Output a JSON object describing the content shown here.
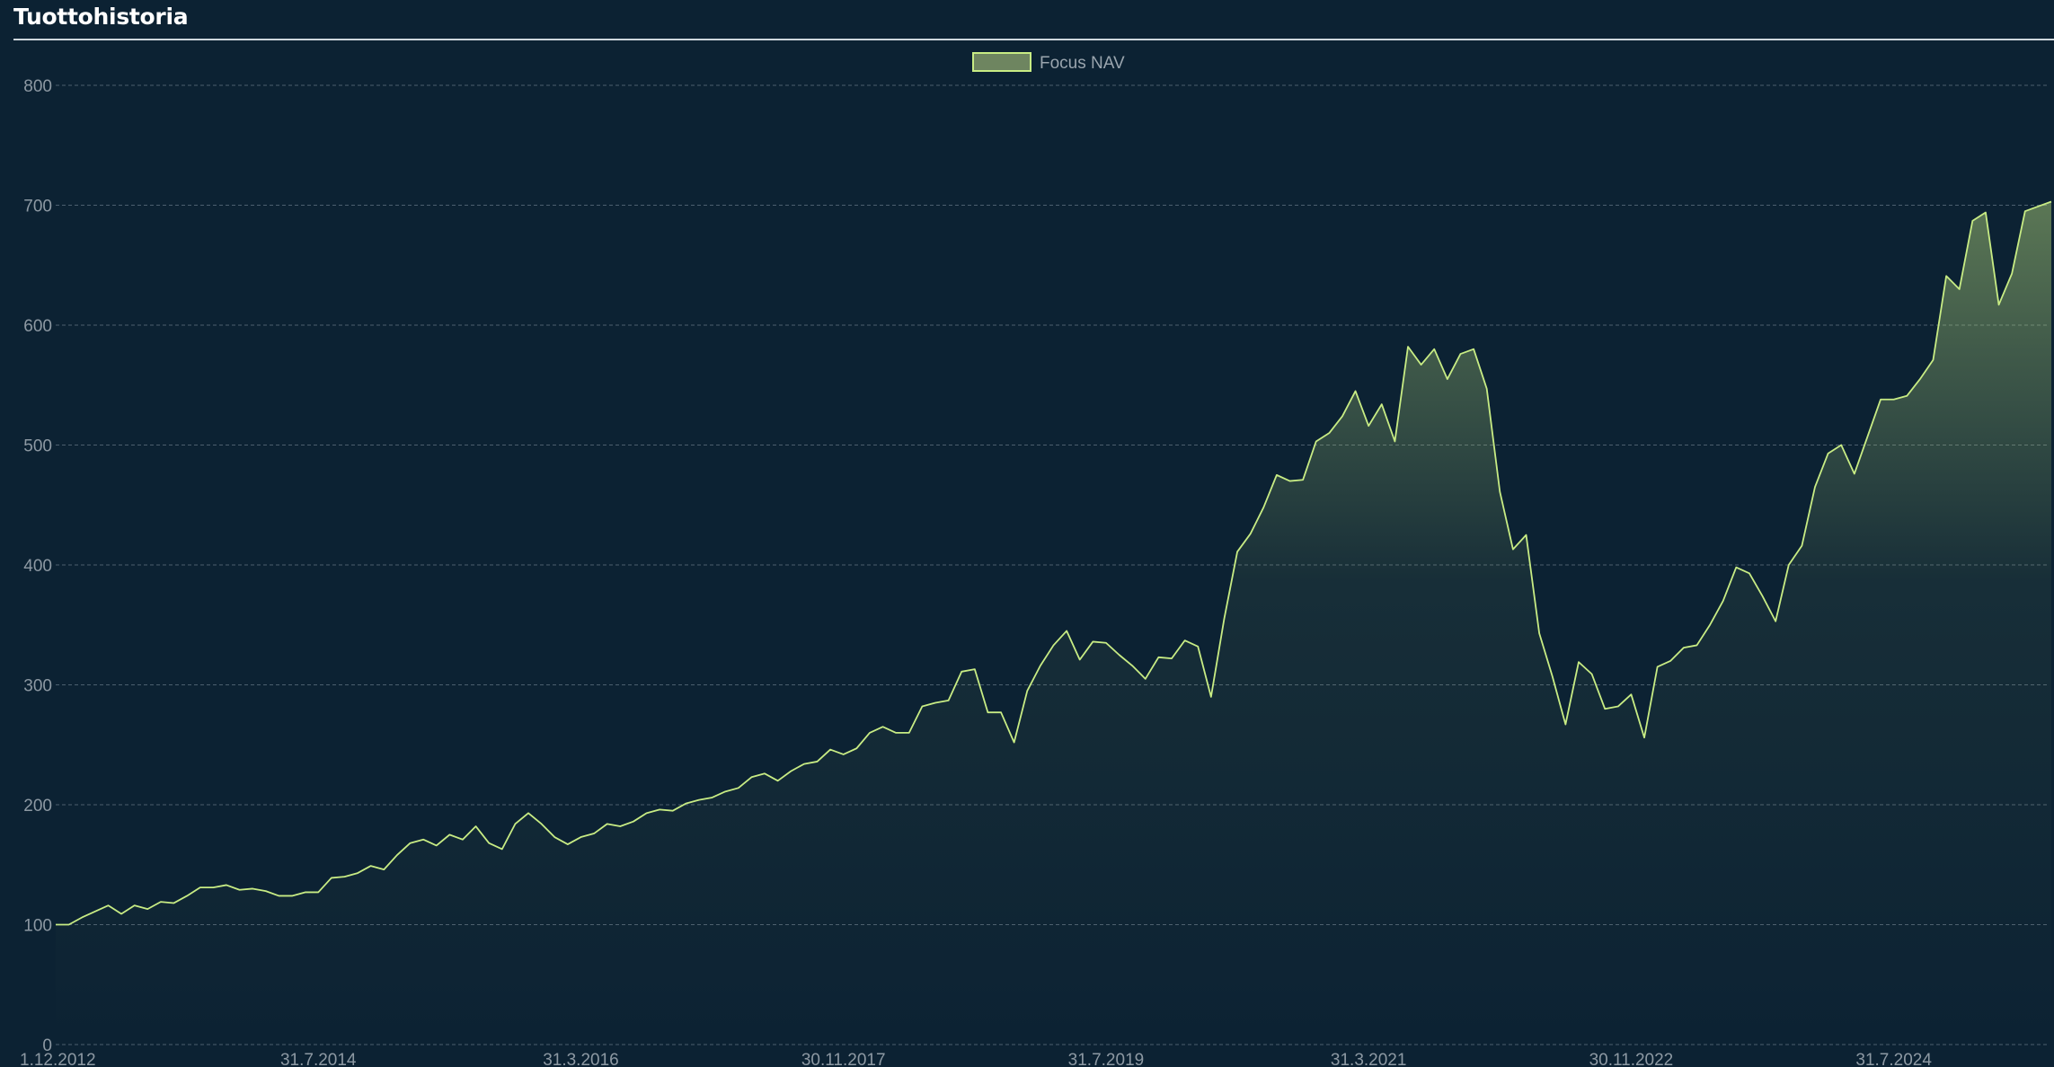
{
  "header": {
    "title": "Tuottohistoria"
  },
  "colors": {
    "background": "#0c2233",
    "line": "#c8ec84",
    "fill": "#c8ec84",
    "grid": "#4c5f6e",
    "tick_text": "#8d99a3",
    "legend_swatch": "#6e8560"
  },
  "chart_data": {
    "type": "area",
    "title": "",
    "xlabel": "",
    "ylabel": "",
    "ylim": [
      0,
      800
    ],
    "yticks": [
      0,
      100,
      200,
      300,
      400,
      500,
      600,
      700,
      800
    ],
    "grid": true,
    "legend_position": "top-center",
    "x_start": "2012-12-01",
    "x_end": "2025-08-31",
    "x_step": "1 month",
    "xticks": [
      {
        "label": "1.12.2012",
        "date": "2012-12-01"
      },
      {
        "label": "31.7.2014",
        "date": "2014-07-31"
      },
      {
        "label": "31.3.2016",
        "date": "2016-03-31"
      },
      {
        "label": "30.11.2017",
        "date": "2017-11-30"
      },
      {
        "label": "31.7.2019",
        "date": "2019-07-31"
      },
      {
        "label": "31.3.2021",
        "date": "2021-03-31"
      },
      {
        "label": "30.11.2022",
        "date": "2022-11-30"
      },
      {
        "label": "31.7.2024",
        "date": "2024-07-31"
      }
    ],
    "series": [
      {
        "name": "Focus NAV",
        "values": [
          100,
          100,
          106,
          111,
          116,
          109,
          116,
          113,
          119,
          118,
          124,
          131,
          131,
          133,
          129,
          130,
          128,
          124,
          124,
          127,
          127,
          139,
          140,
          143,
          149,
          146,
          158,
          168,
          171,
          166,
          175,
          171,
          182,
          168,
          163,
          184,
          193,
          184,
          173,
          167,
          173,
          176,
          184,
          182,
          186,
          193,
          196,
          195,
          201,
          204,
          206,
          211,
          214,
          223,
          226,
          220,
          228,
          234,
          236,
          246,
          242,
          247,
          260,
          265,
          260,
          260,
          282,
          285,
          287,
          311,
          313,
          277,
          277,
          252,
          295,
          316,
          333,
          345,
          321,
          336,
          335,
          325,
          316,
          305,
          323,
          322,
          337,
          332,
          290,
          355,
          411,
          426,
          448,
          475,
          470,
          471,
          503,
          510,
          524,
          545,
          516,
          534,
          503,
          582,
          567,
          580,
          555,
          576,
          580,
          547,
          461,
          413,
          425,
          343,
          307,
          267,
          319,
          309,
          280,
          282,
          292,
          256,
          315,
          320,
          331,
          333,
          350,
          370,
          398,
          393,
          374,
          353,
          400,
          416,
          465,
          493,
          500,
          476,
          507,
          538,
          538,
          541,
          555,
          571,
          641,
          630,
          687,
          694,
          617,
          643,
          695,
          699,
          703
        ]
      }
    ]
  }
}
